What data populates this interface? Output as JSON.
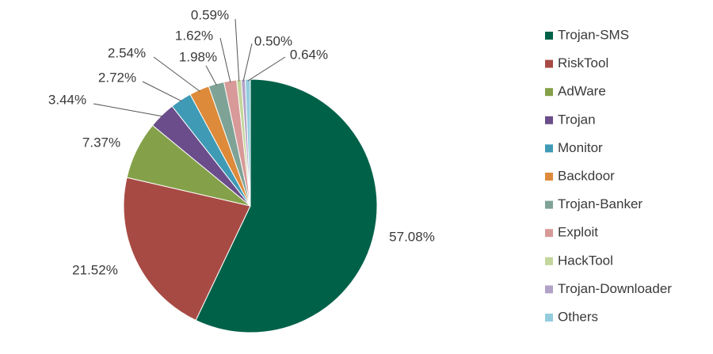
{
  "chart_data": {
    "type": "pie",
    "categories": [
      "Trojan-SMS",
      "RiskTool",
      "AdWare",
      "Trojan",
      "Monitor",
      "Backdoor",
      "Trojan-Banker",
      "Exploit",
      "HackTool",
      "Trojan-Downloader",
      "Others"
    ],
    "values": [
      57.08,
      21.52,
      7.37,
      3.44,
      2.72,
      2.54,
      1.98,
      1.62,
      0.59,
      0.5,
      0.64
    ],
    "value_labels": [
      "57.08%",
      "21.52%",
      "7.37%",
      "3.44%",
      "2.72%",
      "2.54%",
      "1.98%",
      "1.62%",
      "0.59%",
      "0.50%",
      "0.64%"
    ],
    "colors": [
      "#006149",
      "#a84a44",
      "#84a149",
      "#6a4d8a",
      "#3f9bb5",
      "#dd8a3a",
      "#7ea396",
      "#d79a98",
      "#c3d69b",
      "#b2a2c7",
      "#93cddd"
    ],
    "legend": "right"
  }
}
